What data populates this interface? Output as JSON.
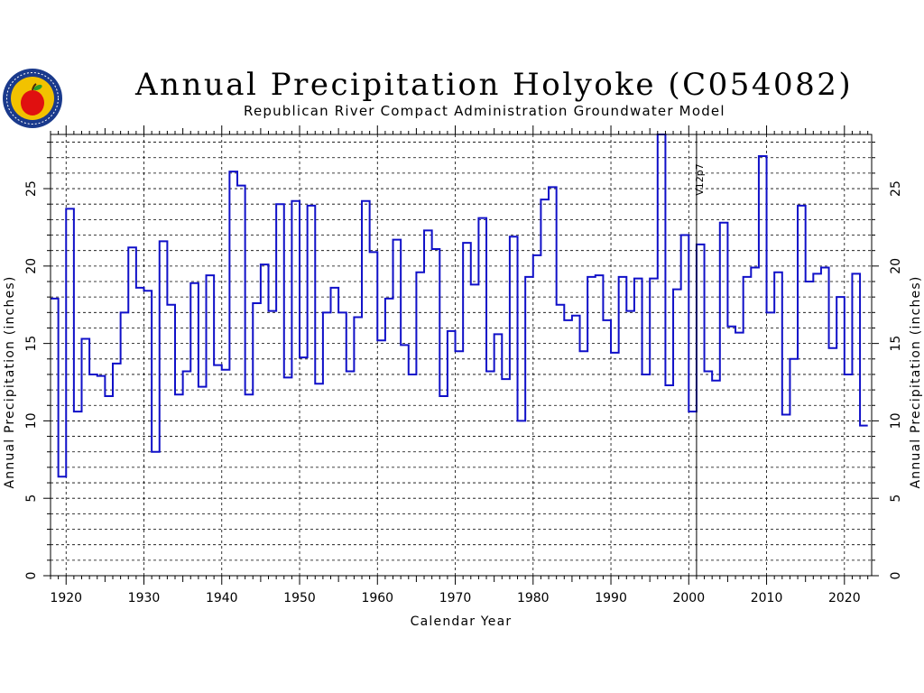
{
  "header": {
    "title": "Annual Precipitation Holyoke (C054082)",
    "subtitle": "Republican River Compact Administration Groundwater Model"
  },
  "logo": {
    "icon": "apple-seal-logo",
    "colors": {
      "ring": "#1a3a8c",
      "inner": "#f2c200",
      "apple": "#e01010"
    }
  },
  "chart_data": {
    "type": "line",
    "style": "step",
    "title": "Annual Precipitation Holyoke (C054082)",
    "subtitle": "Republican River Compact Administration Groundwater Model",
    "xlabel": "Calendar Year",
    "ylabel": "Annual Precipitation (inches)",
    "ylabel_right": "Annual Precipitation (inches)",
    "xlim": [
      1918,
      2023.5
    ],
    "ylim": [
      0,
      28.5
    ],
    "x_ticks": [
      1920,
      1930,
      1940,
      1950,
      1960,
      1970,
      1980,
      1990,
      2000,
      2010,
      2020
    ],
    "y_ticks": [
      0,
      5,
      10,
      15,
      20,
      25
    ],
    "grid": true,
    "series_color": "#1010c8",
    "marker_line": {
      "x": 2001,
      "label": "V12p7",
      "color": "#000000"
    },
    "series": [
      {
        "x": [
          1918,
          1919,
          1920,
          1921,
          1922,
          1923,
          1924,
          1925,
          1926,
          1927,
          1928,
          1929,
          1930,
          1931,
          1932,
          1933,
          1934,
          1935,
          1936,
          1937,
          1938,
          1939,
          1940,
          1941,
          1942,
          1943,
          1944,
          1945,
          1946,
          1947,
          1948,
          1949,
          1950,
          1951,
          1952,
          1953,
          1954,
          1955,
          1956,
          1957,
          1958,
          1959,
          1960,
          1961,
          1962,
          1963,
          1964,
          1965,
          1966,
          1967,
          1968,
          1969,
          1970,
          1971,
          1972,
          1973,
          1974,
          1975,
          1976,
          1977,
          1978,
          1979,
          1980,
          1981,
          1982,
          1983,
          1984,
          1985,
          1986,
          1987,
          1988,
          1989,
          1990,
          1991,
          1992,
          1993,
          1994,
          1995,
          1996,
          1997,
          1998,
          1999,
          2000,
          2001,
          2002,
          2003,
          2004,
          2005,
          2006,
          2007,
          2008,
          2009,
          2010,
          2011,
          2012,
          2013,
          2014,
          2015,
          2016,
          2017,
          2018,
          2019,
          2020,
          2021,
          2022
        ],
        "values": [
          17.9,
          6.4,
          23.7,
          10.6,
          15.3,
          13.0,
          12.9,
          11.6,
          13.7,
          17.0,
          21.2,
          18.6,
          18.4,
          8.0,
          21.6,
          17.5,
          11.7,
          13.2,
          18.9,
          12.2,
          19.4,
          13.6,
          13.3,
          26.1,
          25.2,
          11.7,
          17.6,
          20.1,
          17.1,
          24.0,
          12.8,
          24.2,
          14.1,
          23.9,
          12.4,
          17.0,
          18.6,
          17.0,
          13.2,
          16.7,
          24.2,
          20.9,
          15.2,
          17.9,
          21.7,
          14.9,
          13.0,
          19.6,
          22.3,
          21.1,
          11.6,
          15.8,
          14.5,
          21.5,
          18.8,
          23.1,
          13.2,
          15.6,
          12.7,
          21.9,
          10.0,
          19.3,
          20.7,
          24.3,
          25.1,
          17.5,
          16.5,
          16.8,
          14.5,
          19.3,
          19.4,
          16.5,
          14.4,
          19.3,
          17.1,
          19.2,
          13.0,
          19.2,
          28.5,
          12.3,
          18.5,
          22.0,
          10.6,
          21.4,
          13.2,
          12.6,
          22.8,
          16.1,
          15.7,
          19.3,
          19.9,
          27.1,
          17.0,
          19.6,
          10.4,
          14.0,
          23.9,
          19.0,
          19.5,
          19.9,
          14.7,
          18.0,
          13.0,
          19.5,
          9.7
        ]
      }
    ]
  }
}
